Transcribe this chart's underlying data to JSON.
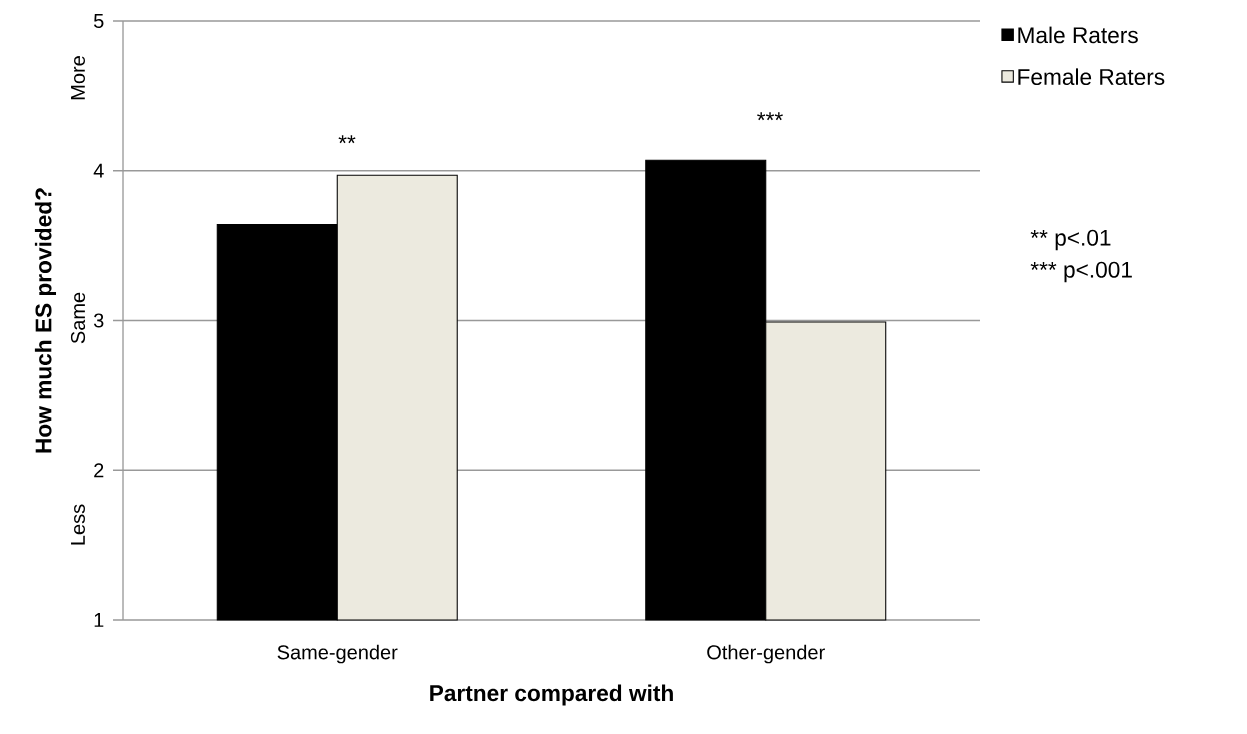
{
  "chart_data": {
    "type": "bar",
    "xlabel": "Partner compared with",
    "ylabel": "How much ES provided?",
    "categories": [
      "Same-gender",
      "Other-gender"
    ],
    "series": [
      {
        "name": "Male Raters",
        "color": "#000000",
        "values": [
          3.64,
          4.07
        ]
      },
      {
        "name": "Female Raters",
        "color": "#eceadf",
        "values": [
          3.97,
          2.99
        ]
      }
    ],
    "ylim": [
      1,
      5
    ],
    "yticks": [
      1,
      2,
      3,
      4,
      5
    ],
    "grid": "y",
    "legend": "top right",
    "annotations": [
      "**",
      "***",
      "Less",
      "Same",
      "More",
      "** p<.01",
      "*** p<.001"
    ]
  }
}
